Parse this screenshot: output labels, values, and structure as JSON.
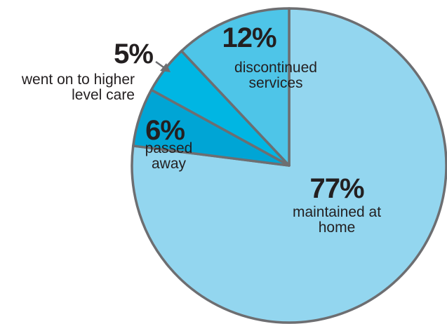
{
  "chart_data": {
    "type": "pie",
    "categories": [
      "maintained at home",
      "passed away",
      "went on to higher level care",
      "discontinued services"
    ],
    "values": [
      77,
      6,
      5,
      12
    ],
    "value_labels": [
      "77%",
      "6%",
      "5%",
      "12%"
    ],
    "colors": [
      "#93d6ef",
      "#00a5d5",
      "#00b6e3",
      "#4ec5e8"
    ]
  }
}
